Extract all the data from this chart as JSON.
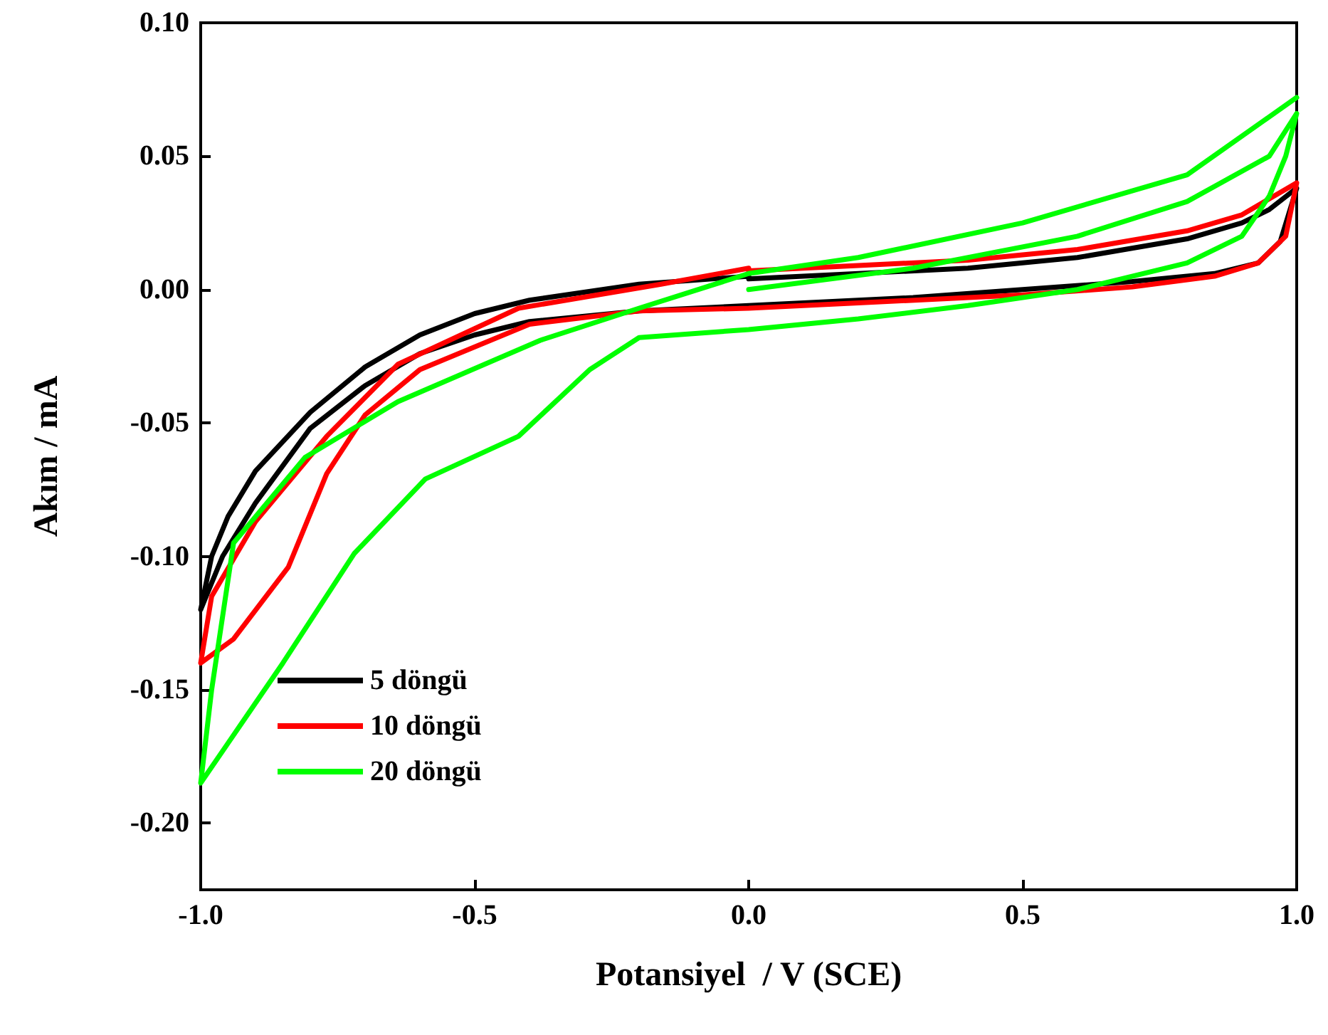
{
  "chart_data": {
    "type": "line",
    "xlabel": "Potansiyel  / V (SCE)",
    "ylabel": "Akım / mA",
    "xlim": [
      -1.0,
      1.0
    ],
    "xticks": [
      {
        "value": -1,
        "label": "-1.0"
      },
      {
        "value": -0.5,
        "label": "-0.5"
      },
      {
        "value": 0,
        "label": "0.0"
      },
      {
        "value": 0.5,
        "label": "0.5"
      },
      {
        "value": 1,
        "label": "1.0"
      }
    ],
    "ylim": [
      -0.225,
      0.1
    ],
    "yticks": [
      {
        "value": -0.2,
        "label": "-0.20"
      },
      {
        "value": -0.15,
        "label": "-0.15"
      },
      {
        "value": -0.1,
        "label": "-0.10"
      },
      {
        "value": -0.05,
        "label": "-0.05"
      },
      {
        "value": 0,
        "label": "0.00"
      },
      {
        "value": 0.05,
        "label": "0.05"
      },
      {
        "value": 0.1,
        "label": "0.10"
      }
    ],
    "grid": false,
    "legend": "bottom left",
    "marker": "none",
    "line_style": "solid",
    "series": [
      {
        "name": "5 döngü",
        "color": "#000000",
        "x": [
          0,
          0.2,
          0.4,
          0.6,
          0.8,
          0.9,
          0.95,
          1.0,
          0.97,
          0.93,
          0.85,
          0.7,
          0.5,
          0.3,
          0.0,
          -0.2,
          -0.4,
          -0.5,
          -0.6,
          -0.7,
          -0.8,
          -0.9,
          -0.96,
          -1.0,
          -0.98,
          -0.95,
          -0.9,
          -0.8,
          -0.7,
          -0.6,
          -0.5,
          -0.4,
          -0.2,
          0
        ],
        "values": [
          0.004,
          0.006,
          0.008,
          0.012,
          0.019,
          0.025,
          0.03,
          0.038,
          0.018,
          0.01,
          0.006,
          0.003,
          0.0,
          -0.003,
          -0.006,
          -0.008,
          -0.012,
          -0.017,
          -0.024,
          -0.036,
          -0.052,
          -0.08,
          -0.1,
          -0.12,
          -0.1,
          -0.085,
          -0.068,
          -0.046,
          -0.029,
          -0.017,
          -0.009,
          -0.004,
          0.002,
          0.005
        ]
      },
      {
        "name": "10 döngü",
        "color": "#ff0000",
        "x": [
          0,
          0.2,
          0.4,
          0.6,
          0.8,
          0.9,
          1.0,
          0.98,
          0.93,
          0.85,
          0.7,
          0.5,
          0.2,
          0,
          -0.2,
          -0.4,
          -0.6,
          -0.7,
          -0.77,
          -0.84,
          -0.94,
          -1.0,
          -0.98,
          -0.9,
          -0.77,
          -0.64,
          -0.42,
          -0.16,
          0
        ],
        "values": [
          0.007,
          0.009,
          0.011,
          0.015,
          0.022,
          0.028,
          0.04,
          0.02,
          0.01,
          0.005,
          0.001,
          -0.002,
          -0.005,
          -0.007,
          -0.008,
          -0.013,
          -0.03,
          -0.047,
          -0.069,
          -0.104,
          -0.131,
          -0.14,
          -0.115,
          -0.087,
          -0.055,
          -0.028,
          -0.007,
          0.002,
          0.008
        ]
      },
      {
        "name": "20 döngü",
        "color": "#00ff00",
        "x": [
          0,
          0.3,
          0.6,
          0.8,
          0.95,
          1.0,
          0.98,
          0.95,
          0.9,
          0.8,
          0.6,
          0.4,
          0.2,
          0,
          -0.2,
          -0.29,
          -0.42,
          -0.59,
          -0.72,
          -0.85,
          -0.95,
          -1.0,
          -0.98,
          -0.94,
          -0.81,
          -0.64,
          -0.38,
          -0.2,
          0,
          0.2,
          0.5,
          0.8,
          1.0
        ],
        "values": [
          0.0,
          0.008,
          0.02,
          0.033,
          0.05,
          0.066,
          0.05,
          0.035,
          0.02,
          0.01,
          0.0,
          -0.006,
          -0.011,
          -0.015,
          -0.018,
          -0.03,
          -0.055,
          -0.071,
          -0.099,
          -0.14,
          -0.17,
          -0.185,
          -0.15,
          -0.095,
          -0.063,
          -0.042,
          -0.019,
          -0.007,
          0.006,
          0.012,
          0.025,
          0.043,
          0.072
        ]
      }
    ]
  }
}
